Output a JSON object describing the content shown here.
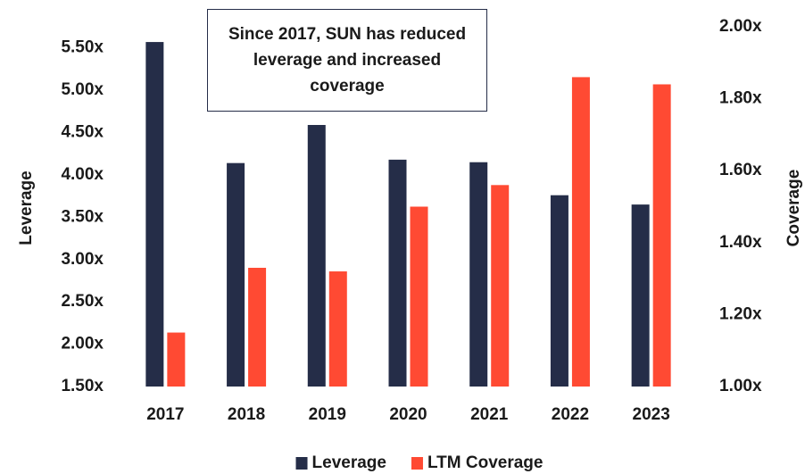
{
  "chart_data": {
    "type": "bar",
    "annotation": "Since 2017, SUN has reduced leverage and increased coverage",
    "categories": [
      "2017",
      "2018",
      "2019",
      "2020",
      "2021",
      "2022",
      "2023"
    ],
    "series": [
      {
        "name": "Leverage",
        "color": "#252d48",
        "values": [
          5.57,
          4.14,
          4.59,
          4.18,
          4.15,
          3.76,
          3.65
        ]
      },
      {
        "name": "LTM Coverage",
        "color": "#ff4a33",
        "axis": "y2",
        "values": [
          1.15,
          1.33,
          1.32,
          1.5,
          1.56,
          1.86,
          1.84
        ]
      }
    ],
    "ylabel": "Leverage",
    "y2label": "Coverage",
    "ylim": [
      1.5,
      5.75
    ],
    "yticks": [
      {
        "value": 1.5,
        "label": "1.50x"
      },
      {
        "value": 2.0,
        "label": "2.00x"
      },
      {
        "value": 2.5,
        "label": "2.50x"
      },
      {
        "value": 3.0,
        "label": "3.00x"
      },
      {
        "value": 3.5,
        "label": "3.50x"
      },
      {
        "value": 4.0,
        "label": "4.00x"
      },
      {
        "value": 4.5,
        "label": "4.50x"
      },
      {
        "value": 5.0,
        "label": "5.00x"
      },
      {
        "value": 5.5,
        "label": "5.50x"
      }
    ],
    "y2lim": [
      1.0,
      2.0
    ],
    "y2ticks": [
      {
        "value": 1.0,
        "label": "1.00x"
      },
      {
        "value": 1.2,
        "label": "1.20x"
      },
      {
        "value": 1.4,
        "label": "1.40x"
      },
      {
        "value": 1.6,
        "label": "1.60x"
      },
      {
        "value": 1.8,
        "label": "1.80x"
      },
      {
        "value": 2.0,
        "label": "2.00x"
      }
    ],
    "legend": "bottom",
    "grid": false
  }
}
